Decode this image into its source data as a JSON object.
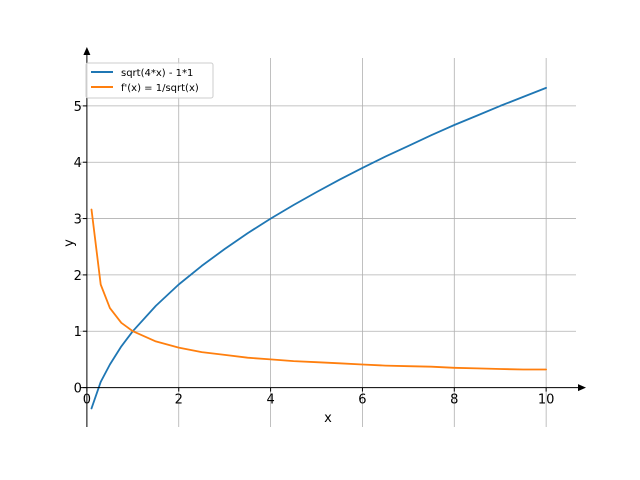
{
  "chart_data": {
    "type": "line",
    "title": "",
    "xlabel": "x",
    "ylabel": "y",
    "xlim": [
      -0.15,
      10.65
    ],
    "ylim": [
      -0.7,
      5.85
    ],
    "xticks": [
      0,
      2,
      4,
      6,
      8,
      10
    ],
    "yticks": [
      0,
      1,
      2,
      3,
      4,
      5
    ],
    "grid": true,
    "legend": "top-left",
    "series": [
      {
        "name": "sqrt(4*x) - 1*1",
        "color": "#1f77b4",
        "x": [
          0.1,
          0.3,
          0.5,
          0.75,
          1,
          1.5,
          2,
          2.5,
          3,
          3.5,
          4,
          4.5,
          5,
          5.5,
          6,
          6.5,
          7,
          7.5,
          8,
          8.5,
          9,
          9.5,
          10
        ],
        "y": [
          -0.37,
          0.1,
          0.41,
          0.73,
          1.0,
          1.45,
          1.83,
          2.16,
          2.46,
          2.74,
          3.0,
          3.24,
          3.47,
          3.69,
          3.9,
          4.1,
          4.29,
          4.48,
          4.66,
          4.83,
          5.0,
          5.16,
          5.32
        ]
      },
      {
        "name": "f'(x) = 1/sqrt(x)",
        "color": "#ff7f0e",
        "x": [
          0.1,
          0.3,
          0.5,
          0.75,
          1,
          1.5,
          2,
          2.5,
          3,
          3.5,
          4,
          4.5,
          5,
          5.5,
          6,
          6.5,
          7,
          7.5,
          8,
          8.5,
          9,
          9.5,
          10
        ],
        "y": [
          3.16,
          1.83,
          1.41,
          1.15,
          1.0,
          0.82,
          0.71,
          0.63,
          0.58,
          0.53,
          0.5,
          0.47,
          0.45,
          0.43,
          0.41,
          0.39,
          0.38,
          0.37,
          0.35,
          0.34,
          0.33,
          0.32,
          0.32
        ]
      }
    ]
  }
}
